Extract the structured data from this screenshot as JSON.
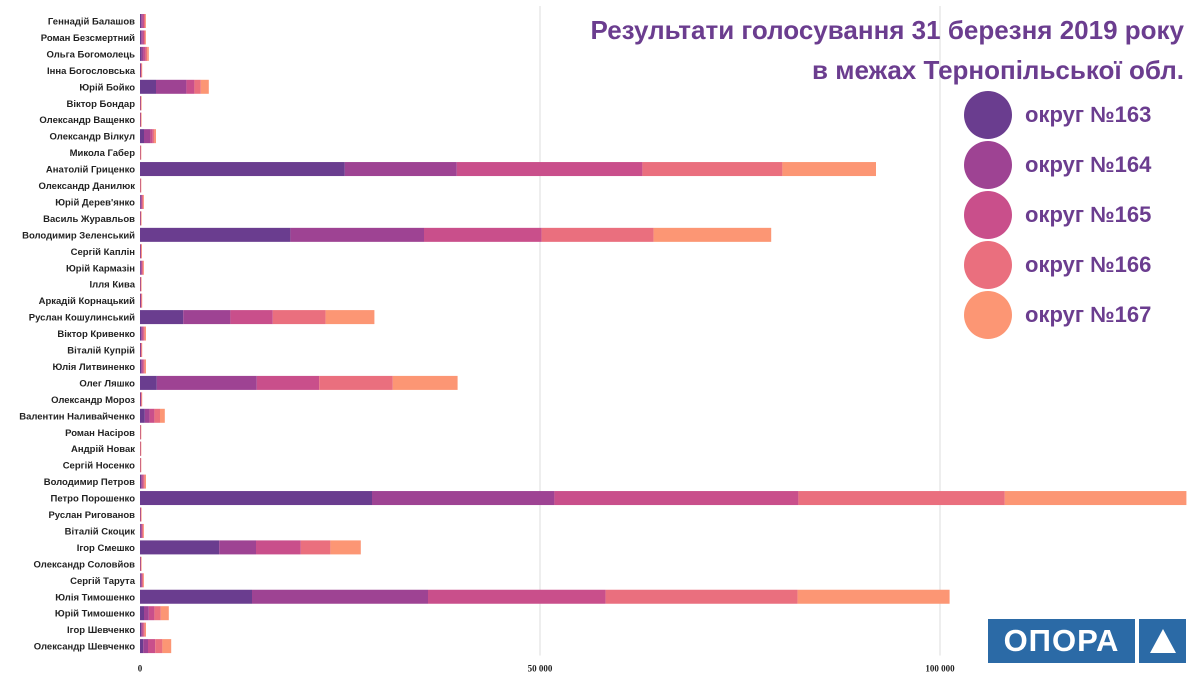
{
  "title_line1": "Результати голосування 31 березня 2019 року",
  "title_line2": "в межах Тернопільської обл.",
  "logo": {
    "text": "ОПОРА",
    "icon": "triangle-icon"
  },
  "legend": [
    {
      "label": "округ №163",
      "color": "#6a3d8f"
    },
    {
      "label": "округ №164",
      "color": "#9e4393"
    },
    {
      "label": "округ №165",
      "color": "#c94f8b"
    },
    {
      "label": "округ №166",
      "color": "#ea6f7e"
    },
    {
      "label": "округ №167",
      "color": "#fc9674"
    }
  ],
  "chart_data": {
    "type": "bar",
    "orientation": "horizontal",
    "stacked": true,
    "xlim": [
      0,
      130000
    ],
    "x_ticks": [
      0,
      50000,
      100000
    ],
    "x_tick_labels": [
      "0",
      "50 000",
      "100 000"
    ],
    "grid": true,
    "legend_position": "right",
    "categories": [
      "Геннадій Балашов",
      "Роман Безсмертний",
      "Ольга Богомолець",
      "Інна Богословська",
      "Юрій Бойко",
      "Віктор Бондар",
      "Олександр Ващенко",
      "Олександр Вілкул",
      "Микола Габер",
      "Анатолій Гриценко",
      "Олександр Данилюк",
      "Юрій Дерев'янко",
      "Василь Журавльов",
      "Володимир Зеленський",
      "Сергій Каплін",
      "Юрій Кармазін",
      "Ілля Кива",
      "Аркадій Корнацький",
      "Руслан Кошулинський",
      "Віктор Кривенко",
      "Віталій Купрій",
      "Юлія Литвиненко",
      "Олег Ляшко",
      "Олександр Мороз",
      "Валентин Наливайченко",
      "Роман Насіров",
      "Андрій Новак",
      "Сергій Носенко",
      "Володимир Петров",
      "Петро Порошенко",
      "Руслан Ригованов",
      "Віталій Скоцик",
      "Ігор Смешко",
      "Олександр Соловйов",
      "Сергій Тарута",
      "Юлія Тимошенко",
      "Юрій Тимошенко",
      "Ігор Шевченко",
      "Олександр Шевченко"
    ],
    "series": [
      {
        "name": "округ №163",
        "values": [
          150,
          150,
          200,
          50,
          2000,
          30,
          30,
          500,
          20,
          25600,
          20,
          100,
          30,
          18800,
          40,
          100,
          30,
          50,
          5400,
          150,
          50,
          150,
          2100,
          50,
          600,
          20,
          20,
          20,
          150,
          29000,
          30,
          100,
          9900,
          30,
          100,
          14000,
          500,
          150,
          400
        ]
      },
      {
        "name": "округ №164",
        "values": [
          200,
          200,
          250,
          50,
          3800,
          30,
          30,
          800,
          20,
          14000,
          20,
          100,
          30,
          16700,
          40,
          100,
          30,
          50,
          5900,
          150,
          50,
          150,
          12500,
          50,
          600,
          20,
          20,
          20,
          150,
          22800,
          30,
          100,
          4600,
          30,
          100,
          22000,
          600,
          150,
          600
        ]
      },
      {
        "name": "округ №165",
        "values": [
          150,
          150,
          250,
          50,
          1000,
          30,
          30,
          300,
          20,
          23200,
          20,
          100,
          30,
          14700,
          40,
          100,
          30,
          50,
          5300,
          150,
          50,
          150,
          7800,
          50,
          600,
          20,
          20,
          20,
          150,
          30500,
          30,
          100,
          5600,
          30,
          100,
          22200,
          700,
          150,
          900
        ]
      },
      {
        "name": "округ №166",
        "values": [
          150,
          150,
          200,
          50,
          800,
          30,
          30,
          200,
          20,
          17500,
          20,
          100,
          30,
          14000,
          40,
          100,
          30,
          50,
          6600,
          150,
          50,
          150,
          9200,
          50,
          700,
          20,
          20,
          20,
          150,
          25800,
          30,
          100,
          3700,
          30,
          100,
          24000,
          800,
          150,
          900
        ]
      },
      {
        "name": "округ №167",
        "values": [
          100,
          100,
          200,
          50,
          1000,
          30,
          30,
          200,
          20,
          11700,
          20,
          100,
          30,
          14700,
          40,
          100,
          30,
          50,
          6100,
          150,
          50,
          150,
          8100,
          50,
          600,
          20,
          20,
          20,
          150,
          22700,
          30,
          100,
          3800,
          30,
          100,
          19000,
          1000,
          150,
          1100
        ]
      }
    ]
  }
}
